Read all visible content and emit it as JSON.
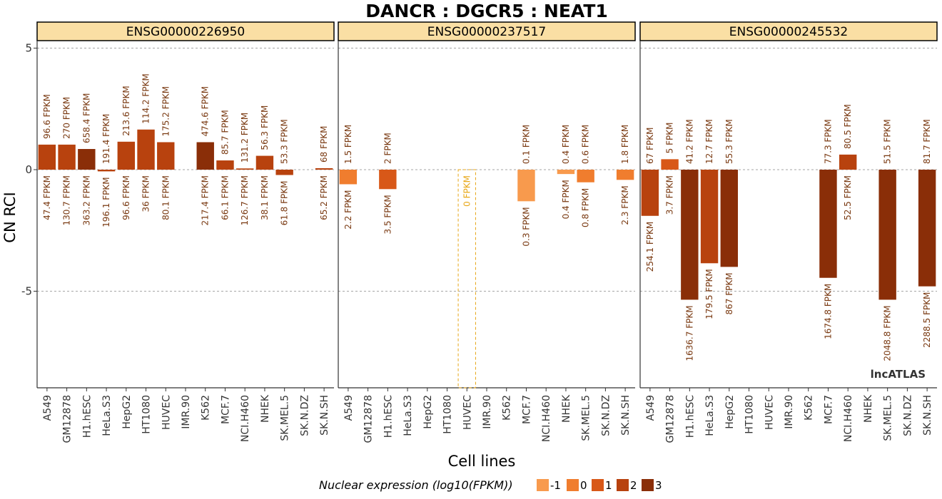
{
  "title": "DANCR : DGCR5 : NEAT1",
  "ylabel": "CN RCI",
  "xlabel": "Cell lines",
  "watermark": "lncATLAS",
  "legend": {
    "title": "Nuclear expression (log10(FPKM))",
    "items": [
      {
        "label": "-1",
        "color": "#F89A4D"
      },
      {
        "label": "0",
        "color": "#F07D2E"
      },
      {
        "label": "1",
        "color": "#D85818"
      },
      {
        "label": "2",
        "color": "#B8420E"
      },
      {
        "label": "3",
        "color": "#8A2E08"
      }
    ]
  },
  "chart_data": {
    "type": "bar",
    "title": "DANCR : DGCR5 : NEAT1",
    "xlabel": "Cell lines",
    "ylabel": "CN RCI",
    "ylim": [
      -9,
      6
    ],
    "yticks": [
      5,
      0,
      -5
    ],
    "grid": "dashed at y ticks",
    "legend_placement": "bottom",
    "categories": [
      "A549",
      "GM12878",
      "H1.hESC",
      "HeLa.S3",
      "HepG2",
      "HT1080",
      "HUVEC",
      "IMR.90",
      "K562",
      "MCF.7",
      "NCI.H460",
      "NHEK",
      "SK.MEL.5",
      "SK.N.DZ",
      "SK.N.SH"
    ],
    "panels": [
      {
        "name": "ENSG00000226950",
        "values": [
          1.03,
          1.03,
          0.85,
          -0.07,
          1.15,
          1.65,
          1.13,
          null,
          1.13,
          0.38,
          0.05,
          0.57,
          -0.22,
          null,
          0.06
        ],
        "levels": [
          2,
          2,
          3,
          2,
          2,
          2,
          2,
          null,
          3,
          2,
          2,
          2,
          2,
          null,
          2
        ],
        "cyto_labels": [
          "96.6 FPKM",
          "270 FPKM",
          "658.4 FPKM",
          "191.4 FPKM",
          "213.6 FPKM",
          "114.2 FPKM",
          "175.2 FPKM",
          "",
          "474.6 FPKM",
          "85.7 FPKM",
          "131.2 FPKM",
          "56.3 FPKM",
          "53.3 FPKM",
          "",
          "68 FPKM"
        ],
        "nuc_labels": [
          "47.4 FPKM",
          "130.7 FPKM",
          "363.2 FPKM",
          "196.1 FPKM",
          "96.6 FPKM",
          "36 FPKM",
          "80.1 FPKM",
          "",
          "217.4 FPKM",
          "66.1 FPKM",
          "126.7 FPKM",
          "38.1 FPKM",
          "61.8 FPKM",
          "",
          "65.2 FPKM"
        ]
      },
      {
        "name": "ENSG00000237517",
        "values": [
          -0.6,
          null,
          -0.8,
          null,
          null,
          null,
          0,
          null,
          null,
          -1.3,
          null,
          -0.18,
          -0.52,
          null,
          -0.42
        ],
        "levels": [
          0,
          null,
          1,
          null,
          null,
          null,
          -1,
          null,
          null,
          -1,
          null,
          -1,
          0,
          null,
          0
        ],
        "cyto_labels": [
          "1.5 FPKM",
          "",
          "2 FPKM",
          "",
          "",
          "",
          "",
          "",
          "",
          "0.1 FPKM",
          "",
          "0.4 FPKM",
          "0.6 FPKM",
          "",
          "1.8 FPKM"
        ],
        "nuc_labels": [
          "2.2 FPKM",
          "",
          "3.5 FPKM",
          "",
          "",
          "",
          "0 FPKM",
          "",
          "",
          "0.3 FPKM",
          "",
          "0.4 FPKM",
          "0.8 FPKM",
          "",
          "2.3 FPKM"
        ]
      },
      {
        "name": "ENSG00000245532",
        "values": [
          -1.9,
          0.43,
          -5.35,
          -3.85,
          -4.0,
          null,
          null,
          null,
          null,
          -4.45,
          0.62,
          null,
          -5.35,
          null,
          -4.8
        ],
        "levels": [
          2,
          1,
          3,
          2,
          3,
          null,
          null,
          null,
          null,
          3,
          2,
          null,
          3,
          null,
          3
        ],
        "cyto_labels": [
          "67 FPKM",
          "5 FPKM",
          "41.2 FPKM",
          "12.7 FPKM",
          "55.3 FPKM",
          "",
          "",
          "",
          "",
          "77.3 FPKM",
          "80.5 FPKM",
          "",
          "51.5 FPKM",
          "",
          "81.7 FPKM"
        ],
        "nuc_labels": [
          "254.1 FPKM",
          "3.7 FPKM",
          "1636.7 FPKM",
          "179.5 FPKM",
          "867 FPKM",
          "",
          "",
          "",
          "",
          "1674.8 FPKM",
          "52.5 FPKM",
          "",
          "2048.8 FPKM",
          "",
          "2288.5 FPKM"
        ]
      }
    ]
  }
}
